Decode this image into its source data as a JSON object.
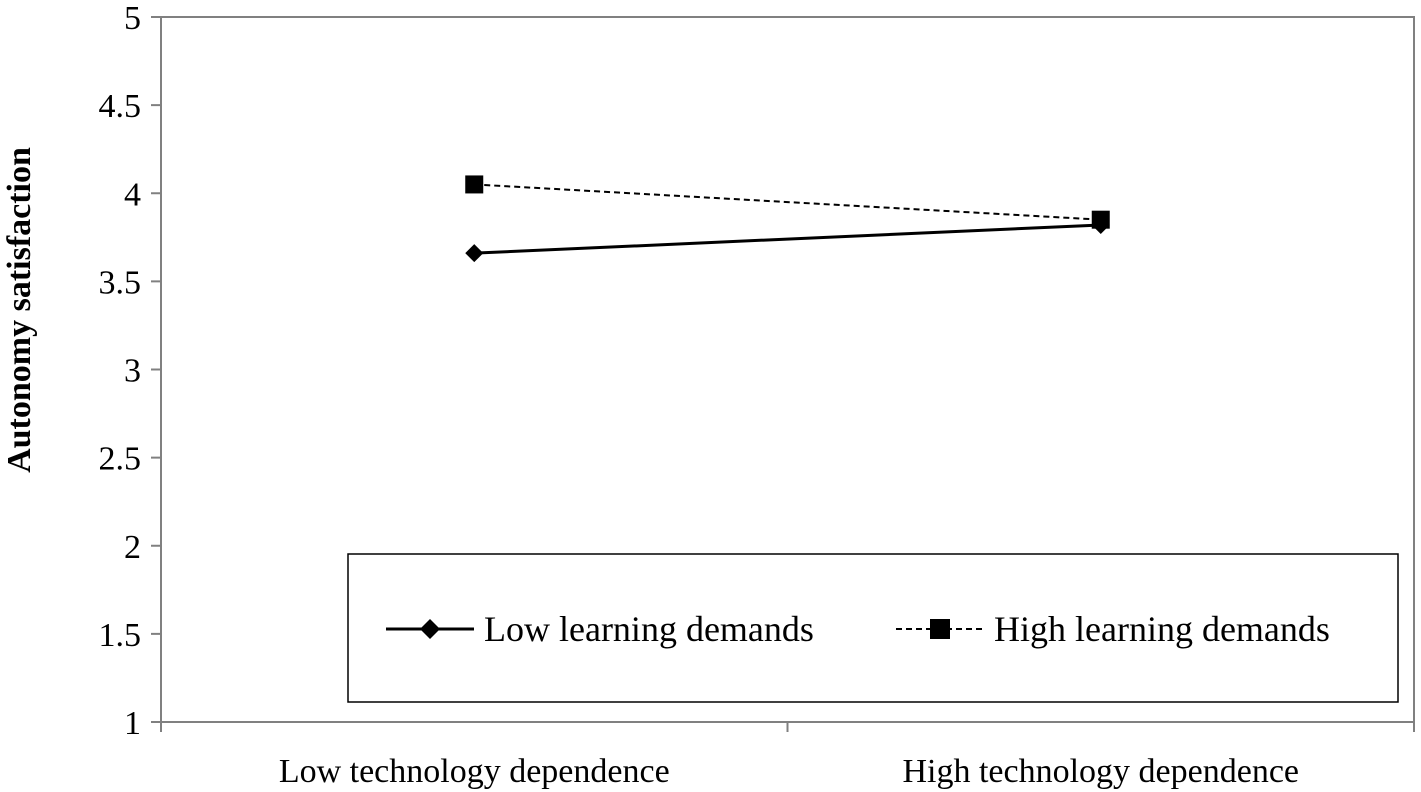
{
  "chart_data": {
    "type": "line",
    "title": "",
    "xlabel": "",
    "ylabel": "Autonomy satisfaction",
    "categories": [
      "Low technology dependence",
      "High technology dependence"
    ],
    "ylim": [
      1,
      5
    ],
    "yticks": [
      "1",
      "1.5",
      "2",
      "2.5",
      "3",
      "3.5",
      "4",
      "4.5",
      "5"
    ],
    "grid": false,
    "legend_position": "bottom-right inside plot",
    "series": [
      {
        "name": "Low learning demands",
        "values": [
          3.66,
          3.82
        ],
        "line_style": "solid",
        "marker": "diamond",
        "color": "#000000"
      },
      {
        "name": "High learning demands",
        "values": [
          4.05,
          3.85
        ],
        "line_style": "dashed",
        "marker": "square",
        "color": "#000000"
      }
    ]
  }
}
